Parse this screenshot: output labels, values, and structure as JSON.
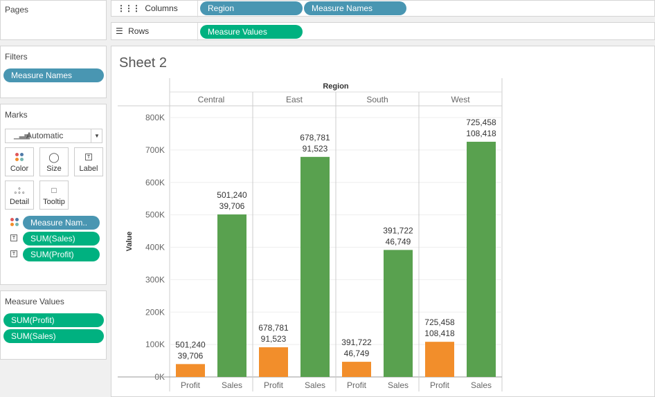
{
  "pages": {
    "title": "Pages"
  },
  "columns_shelf": {
    "label": "Columns",
    "pills": [
      "Region",
      "Measure Names"
    ]
  },
  "rows_shelf": {
    "label": "Rows",
    "pills": [
      "Measure Values"
    ]
  },
  "filters": {
    "title": "Filters",
    "pills": [
      "Measure Names"
    ]
  },
  "marks": {
    "title": "Marks",
    "mark_type": "Automatic",
    "buttons": [
      "Color",
      "Size",
      "Label",
      "Detail",
      "Tooltip"
    ],
    "fields": [
      "Measure Nam..",
      "SUM(Sales)",
      "SUM(Profit)"
    ]
  },
  "measure_values": {
    "title": "Measure Values",
    "pills": [
      "SUM(Profit)",
      "SUM(Sales)"
    ]
  },
  "sheet": {
    "title": "Sheet 2"
  },
  "colors": {
    "profit": "#f28e2b",
    "sales": "#59a14f",
    "blue_pill": "#4996b2",
    "green_pill": "#00b180"
  },
  "chart_data": {
    "type": "bar",
    "header": "Region",
    "regions": [
      "Central",
      "East",
      "South",
      "West"
    ],
    "subcategories": [
      "Profit",
      "Sales"
    ],
    "ylabel": "Value",
    "ylim": [
      0,
      800000
    ],
    "yticks": [
      0,
      100000,
      200000,
      300000,
      400000,
      500000,
      600000,
      700000,
      800000
    ],
    "ytick_labels": [
      "0K",
      "100K",
      "200K",
      "300K",
      "400K",
      "500K",
      "600K",
      "700K",
      "800K"
    ],
    "series": [
      {
        "name": "Profit",
        "values": [
          39706,
          91523,
          46749,
          108418
        ]
      },
      {
        "name": "Sales",
        "values": [
          501240,
          678781,
          391722,
          725458
        ]
      }
    ],
    "labels": {
      "sales_line": [
        "501,240",
        "678,781",
        "391,722",
        "725,458"
      ],
      "profit_line": [
        "39,706",
        "91,523",
        "46,749",
        "108,418"
      ]
    },
    "grid": true
  }
}
